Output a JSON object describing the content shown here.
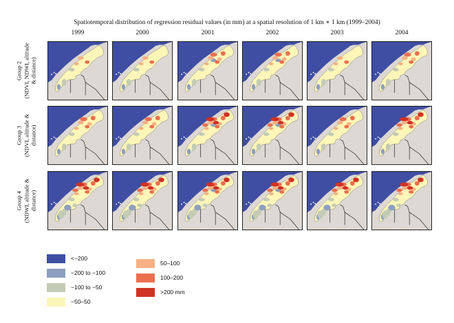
{
  "title": "Spatiotemporal distribution of regression residual values (in mm) at a spatial resolution of 1 km ∗ 1 km (1999–2004)",
  "years": [
    "1999",
    "2000",
    "2001",
    "2002",
    "2003",
    "2004"
  ],
  "rows": [
    {
      "label_lines": [
        "Group 2",
        "(NDVI, NDWI, altitude",
        "& distance)"
      ],
      "intensity": 0
    },
    {
      "label_lines": [
        "Group 3",
        "(NDVI, altitude &",
        "distance)"
      ],
      "intensity": 1
    },
    {
      "label_lines": [
        "Group 4",
        "(NDWI, altitude &",
        "distance)"
      ],
      "intensity": 2
    }
  ],
  "year_intensity": [
    0,
    1,
    2,
    2,
    1,
    2
  ],
  "legend": [
    {
      "label": "<−200",
      "color": "#3f4ea3"
    },
    {
      "label": "−200 to −100",
      "color": "#8d9fc0"
    },
    {
      "label": "−100 to −50",
      "color": "#c4cbb5"
    },
    {
      "label": "−50–50",
      "color": "#fdf6b8"
    },
    {
      "label": "50–100",
      "color": "#f7b184"
    },
    {
      "label": "100–200",
      "color": "#ec6f50"
    },
    {
      "label": ">200 mm",
      "color": "#d03223"
    }
  ],
  "colors": {
    "ocean": "#3f4ea3",
    "neighbor_land": "#ddd8d4",
    "border": "#222222"
  }
}
